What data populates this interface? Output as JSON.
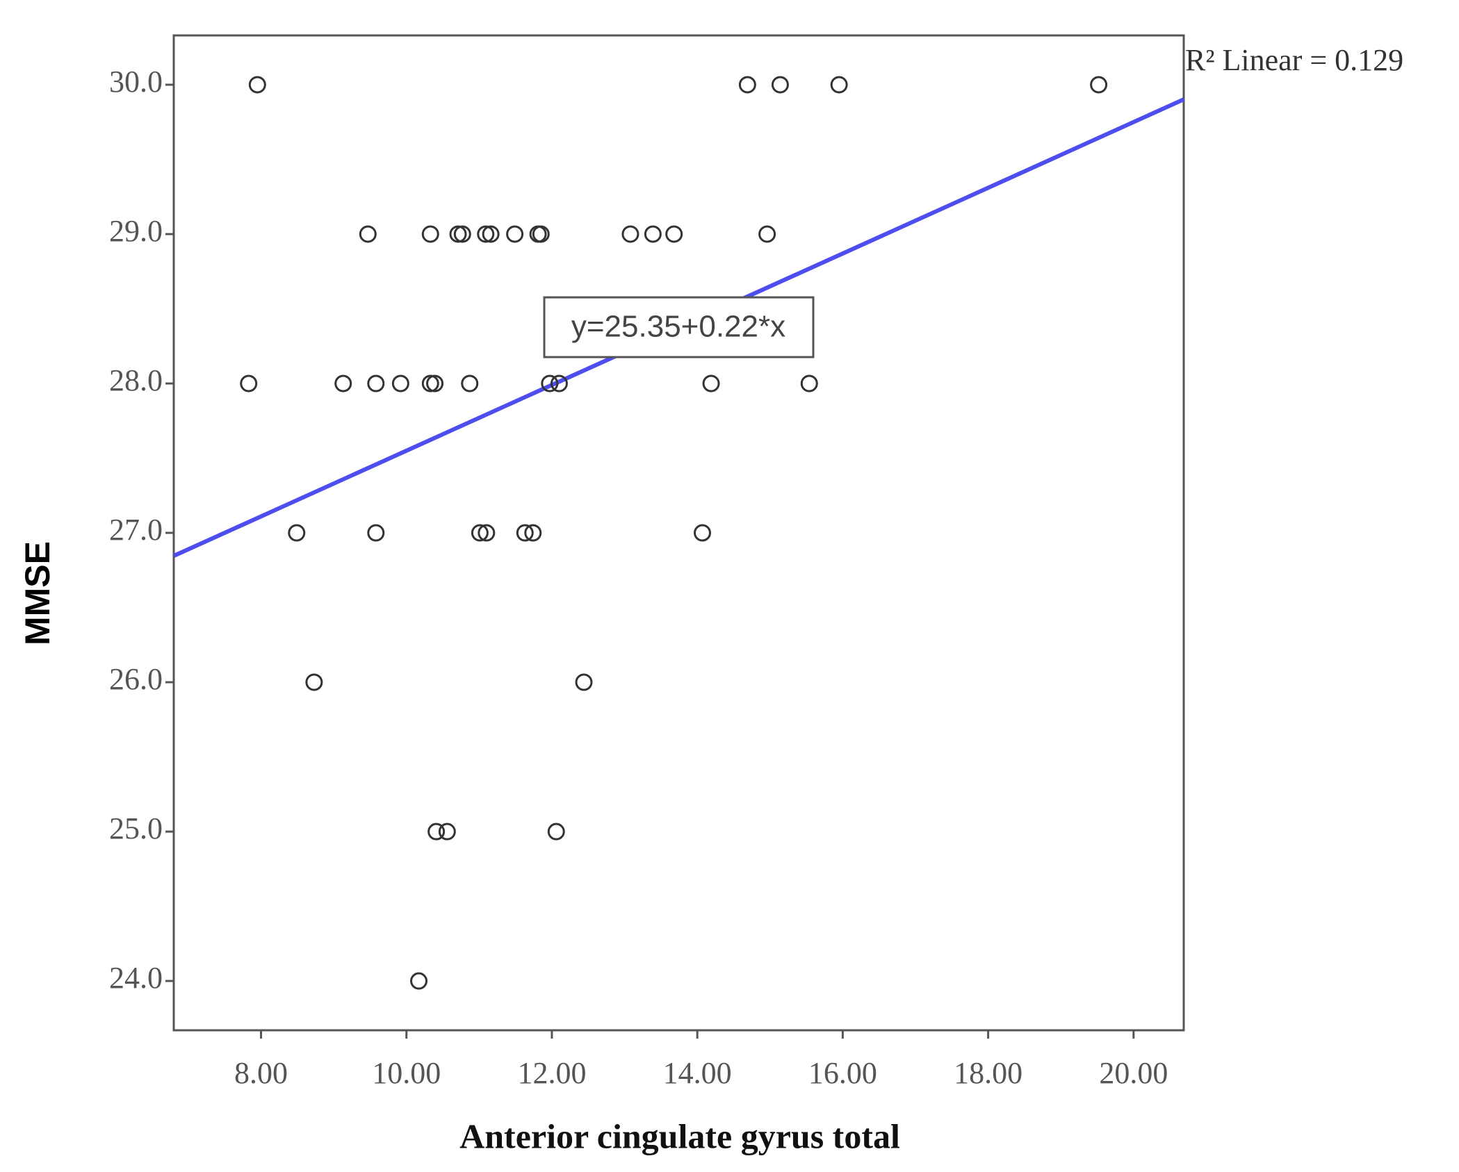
{
  "chart_data": {
    "type": "scatter",
    "x_label": "Anterior cingulate gyrus total",
    "y_label": "MMSE",
    "xlim": [
      6.8,
      20.69
    ],
    "ylim": [
      23.67,
      30.33
    ],
    "xticks": [
      {
        "value": 8,
        "label": "8.00"
      },
      {
        "value": 10,
        "label": "10.00"
      },
      {
        "value": 12,
        "label": "12.00"
      },
      {
        "value": 14,
        "label": "14.00"
      },
      {
        "value": 16,
        "label": "16.00"
      },
      {
        "value": 18,
        "label": "18.00"
      },
      {
        "value": 20,
        "label": "20.00"
      }
    ],
    "yticks": [
      {
        "value": 24,
        "label": "24.0"
      },
      {
        "value": 25,
        "label": "25.0"
      },
      {
        "value": 26,
        "label": "26.0"
      },
      {
        "value": 27,
        "label": "27.0"
      },
      {
        "value": 28,
        "label": "28.0"
      },
      {
        "value": 29,
        "label": "29.0"
      },
      {
        "value": 30,
        "label": "30.0"
      }
    ],
    "marker_color": "#333333",
    "x": [
      7.95,
      14.69,
      15.14,
      15.95,
      19.52,
      9.47,
      10.33,
      10.71,
      10.77,
      11.09,
      11.16,
      11.49,
      11.81,
      11.85,
      13.08,
      13.39,
      13.68,
      14.96,
      7.83,
      9.13,
      9.58,
      9.92,
      10.33,
      10.39,
      10.87,
      11.97,
      12.1,
      14.19,
      15.54,
      8.49,
      9.58,
      11.01,
      11.1,
      11.63,
      11.74,
      14.07,
      8.73,
      12.44,
      10.41,
      10.56,
      12.06,
      10.17
    ],
    "y": [
      30,
      30,
      30,
      30,
      30,
      29,
      29,
      29,
      29,
      29,
      29,
      29,
      29,
      29,
      29,
      29,
      29,
      29,
      28,
      28,
      28,
      28,
      28,
      28,
      28,
      28,
      28,
      28,
      28,
      27,
      27,
      27,
      27,
      27,
      27,
      27,
      26,
      26,
      25,
      25,
      25,
      24
    ],
    "fit_line": {
      "intercept": 25.35,
      "slope": 0.22,
      "color": "#4d4df0",
      "label": "y=25.35+0.22*x"
    },
    "r2_label": "R² Linear = 0.129"
  }
}
